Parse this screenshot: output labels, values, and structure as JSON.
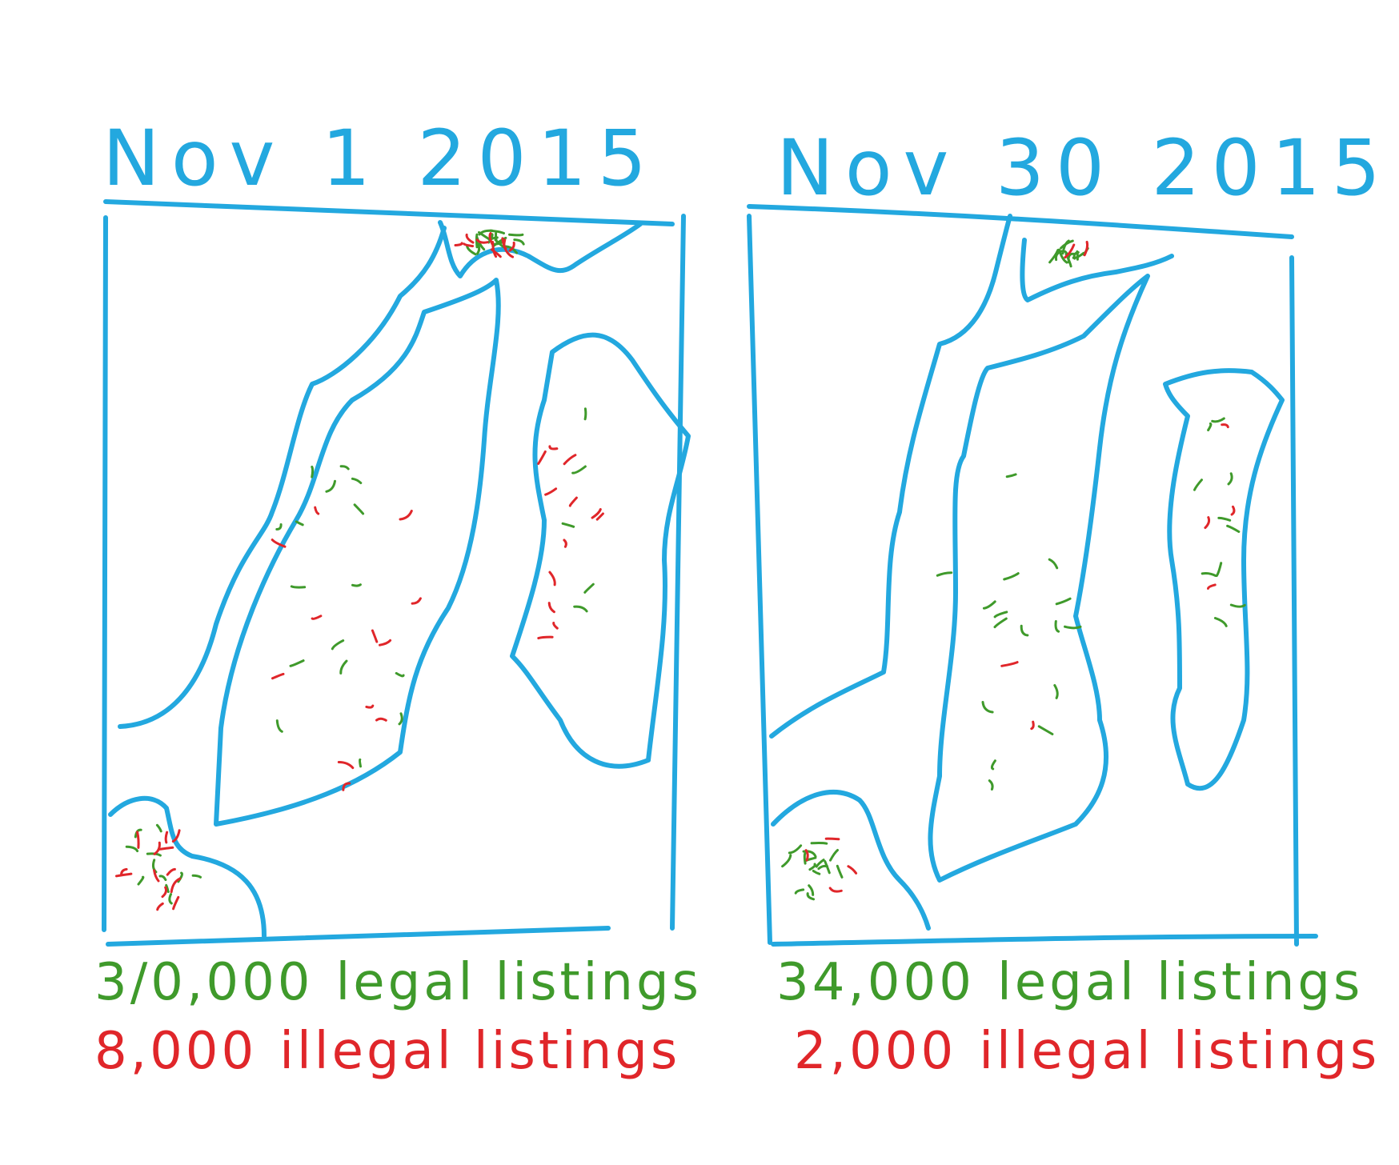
{
  "colors": {
    "outline": "#23a8df",
    "legal": "#3f9a2b",
    "illegal": "#e0262a",
    "background": "#ffffff"
  },
  "panels": [
    {
      "date": "Nov 1 2015",
      "legal_count": "3/0,000",
      "legal_label": "legal listings",
      "illegal_count": "8,000",
      "illegal_label": "illegal listings",
      "legal_listings": 30000,
      "illegal_listings": 8000
    },
    {
      "date": "Nov 30 2015",
      "legal_count": "34,000",
      "legal_label": "legal listings",
      "illegal_count": "2,000",
      "illegal_label": "illegal listings",
      "legal_listings": 34000,
      "illegal_listings": 2000
    }
  ]
}
